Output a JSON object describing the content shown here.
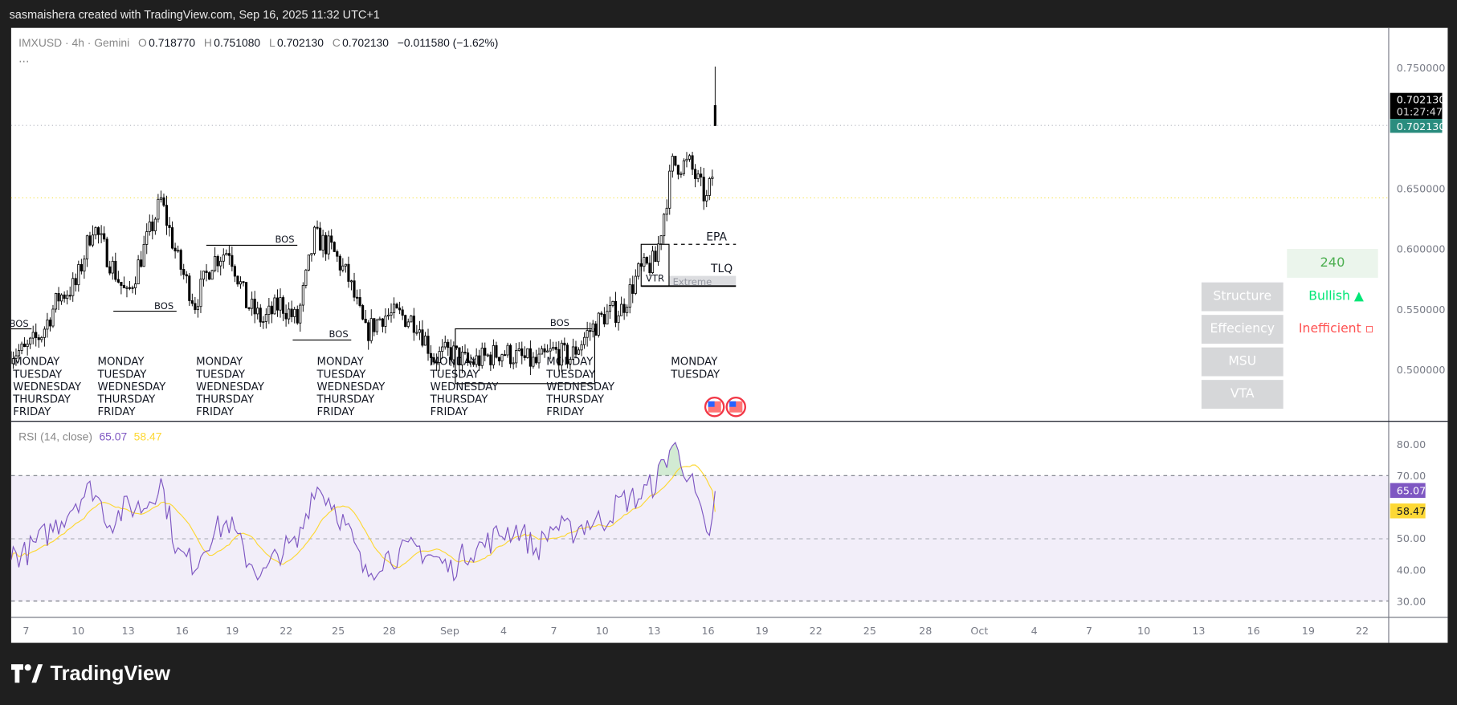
{
  "header": {
    "attribution": "sasmaishera created with TradingView.com, Sep 16, 2025 11:32 UTC+1"
  },
  "legend": {
    "symbol": "IMXUSD · 4h · Gemini",
    "open_key": "O",
    "open": "0.718770",
    "high_key": "H",
    "high": "0.751080",
    "low_key": "L",
    "low": "0.702130",
    "close_key": "C",
    "close": "0.702130",
    "change": "−0.011580 (−1.62%)",
    "more": "..."
  },
  "price_axis": {
    "ticks": [
      "0.750000",
      "0.650000",
      "0.600000",
      "0.550000",
      "0.500000"
    ],
    "last_price": "0.702130",
    "countdown": "01:27:47",
    "last_price_tag": "0.702130",
    "tag_color": "#2a8c7e"
  },
  "annotations": {
    "bos": [
      "BOS",
      "BOS",
      "BOS",
      "BOS",
      "BOS"
    ],
    "epa": "EPA",
    "vtr": "VTR",
    "tlq": "TLQ",
    "extreme": "Extreme",
    "weekdays": [
      "MONDAY",
      "TUESDAY",
      "WEDNESDAY",
      "THURSDAY",
      "FRIDAY"
    ]
  },
  "table": {
    "timeframe": "240",
    "rows": [
      {
        "label": "Structure",
        "value": "Bullish ▲",
        "color": "#00e676"
      },
      {
        "label": "Effeciency",
        "value": "Inefficient ▫",
        "color": "#ff5252"
      },
      {
        "label": "MSU",
        "value": ""
      },
      {
        "label": "VTA",
        "value": ""
      }
    ]
  },
  "rsi": {
    "title": "RSI (14, close)",
    "value": "65.07",
    "ma_value": "58.47",
    "rsi_color": "#7e57c2",
    "ma_color": "#fdd835",
    "ticks": [
      "80.00",
      "70.00",
      "50.00",
      "40.00",
      "30.00"
    ]
  },
  "time_axis": [
    "7",
    "10",
    "13",
    "16",
    "19",
    "22",
    "25",
    "28",
    "Sep",
    "4",
    "7",
    "10",
    "13",
    "16",
    "19",
    "22",
    "25",
    "28",
    "Oct",
    "4",
    "7",
    "10",
    "13",
    "16",
    "19",
    "22"
  ],
  "branding": {
    "logo": "TradingView"
  },
  "chart_data": {
    "type": "candlestick",
    "symbol": "IMXUSD",
    "interval": "4h",
    "exchange": "Gemini",
    "ylim": [
      0.47,
      0.76
    ],
    "daily_close_approx": [
      [
        "Aug 6",
        0.515
      ],
      [
        "Aug 7",
        0.53
      ],
      [
        "Aug 8",
        0.56
      ],
      [
        "Aug 9",
        0.57
      ],
      [
        "Aug 10",
        0.62
      ],
      [
        "Aug 11",
        0.59
      ],
      [
        "Aug 12",
        0.56
      ],
      [
        "Aug 13",
        0.6
      ],
      [
        "Aug 14",
        0.64
      ],
      [
        "Aug 15",
        0.59
      ],
      [
        "Aug 16",
        0.555
      ],
      [
        "Aug 17",
        0.59
      ],
      [
        "Aug 18",
        0.6
      ],
      [
        "Aug 19",
        0.555
      ],
      [
        "Aug 20",
        0.54
      ],
      [
        "Aug 21",
        0.555
      ],
      [
        "Aug 22",
        0.54
      ],
      [
        "Aug 23",
        0.61
      ],
      [
        "Aug 24",
        0.6
      ],
      [
        "Aug 25",
        0.575
      ],
      [
        "Aug 26",
        0.53
      ],
      [
        "Aug 27",
        0.545
      ],
      [
        "Aug 28",
        0.545
      ],
      [
        "Aug 29",
        0.54
      ],
      [
        "Aug 30",
        0.51
      ],
      [
        "Aug 31",
        0.515
      ],
      [
        "Sep 1",
        0.505
      ],
      [
        "Sep 2",
        0.51
      ],
      [
        "Sep 3",
        0.515
      ],
      [
        "Sep 4",
        0.51
      ],
      [
        "Sep 5",
        0.505
      ],
      [
        "Sep 6",
        0.515
      ],
      [
        "Sep 7",
        0.51
      ],
      [
        "Sep 8",
        0.53
      ],
      [
        "Sep 9",
        0.545
      ],
      [
        "Sep 10",
        0.55
      ],
      [
        "Sep 11",
        0.58
      ],
      [
        "Sep 12",
        0.59
      ],
      [
        "Sep 13",
        0.67
      ],
      [
        "Sep 14",
        0.67
      ],
      [
        "Sep 15",
        0.64
      ],
      [
        "Sep 16",
        0.70213
      ]
    ],
    "rsi_daily_approx": [
      45,
      50,
      55,
      62,
      66,
      55,
      60,
      60,
      68,
      45,
      42,
      52,
      55,
      44,
      38,
      46,
      48,
      67,
      62,
      52,
      38,
      44,
      45,
      47,
      44,
      40,
      46,
      48,
      52,
      53,
      46,
      54,
      52,
      55,
      56,
      62,
      63,
      68,
      80,
      70,
      50,
      65.07
    ],
    "rsi_levels": [
      70,
      50,
      30
    ],
    "rsi_ylim": [
      25,
      85
    ]
  }
}
